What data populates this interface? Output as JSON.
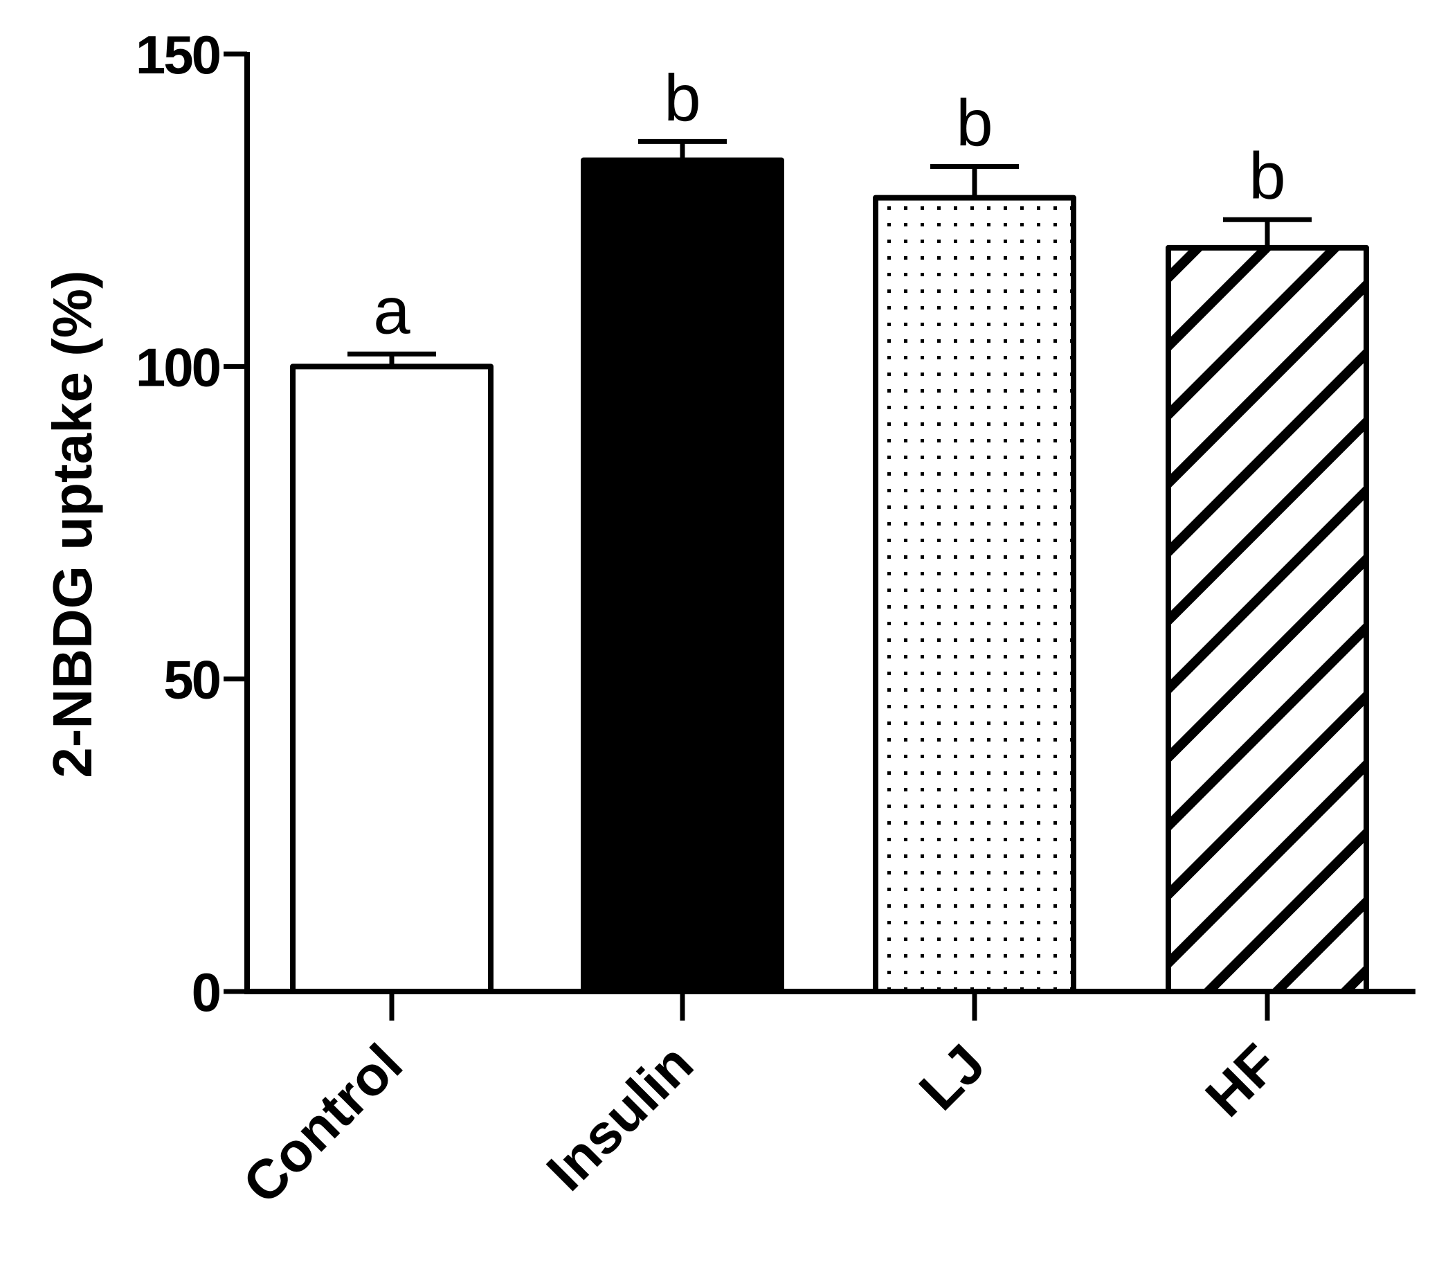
{
  "chart_data": {
    "type": "bar",
    "title": "",
    "xlabel": "",
    "ylabel": "2-NBDG uptake (%)",
    "ylim": [
      0,
      150
    ],
    "yticks": [
      0,
      50,
      100,
      150
    ],
    "grid": false,
    "legend": "none",
    "categories": [
      "Control",
      "Insulin",
      "LJ",
      "HF"
    ],
    "values": [
      100,
      133,
      127,
      119
    ],
    "errors": [
      2,
      3,
      5,
      4.5
    ],
    "significance_letters": [
      "a",
      "b",
      "b",
      "b"
    ],
    "fills": [
      "white",
      "solid-black",
      "dotted",
      "diagonal-hatch"
    ],
    "colors": {
      "ink": "#000000",
      "background": "#ffffff"
    }
  }
}
